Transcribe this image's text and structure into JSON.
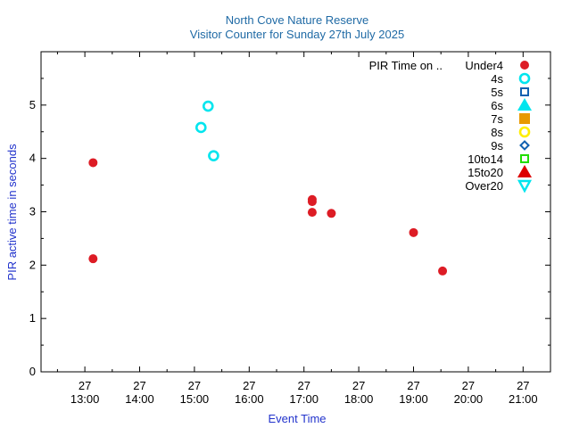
{
  "chart_data": {
    "type": "scatter",
    "title": "North Cove Nature Reserve",
    "subtitle": "Visitor Counter for Sunday 27th July 2025",
    "xlabel": "Event Time",
    "ylabel": "PIR active time in seconds",
    "x_unit": "hours",
    "xlim": [
      12.2,
      21.5
    ],
    "ylim": [
      0,
      6
    ],
    "x_ticks": [
      {
        "x": 13,
        "day": "27",
        "time": "13:00"
      },
      {
        "x": 14,
        "day": "27",
        "time": "14:00"
      },
      {
        "x": 15,
        "day": "27",
        "time": "15:00"
      },
      {
        "x": 16,
        "day": "27",
        "time": "16:00"
      },
      {
        "x": 17,
        "day": "27",
        "time": "17:00"
      },
      {
        "x": 18,
        "day": "27",
        "time": "18:00"
      },
      {
        "x": 19,
        "day": "27",
        "time": "19:00"
      },
      {
        "x": 20,
        "day": "27",
        "time": "20:00"
      },
      {
        "x": 21,
        "day": "27",
        "time": "21:00"
      }
    ],
    "y_ticks": [
      0,
      1,
      2,
      3,
      4,
      5
    ],
    "legend_title": "PIR Time on ..",
    "legend_position": "top-right",
    "series": [
      {
        "name": "Under4",
        "marker": "filled-circle",
        "color": "#dd1c25",
        "points": [
          [
            13.15,
            3.92
          ],
          [
            13.15,
            2.12
          ],
          [
            17.15,
            3.23
          ],
          [
            17.15,
            3.19
          ],
          [
            17.15,
            2.99
          ],
          [
            17.5,
            2.97
          ],
          [
            19.0,
            2.61
          ],
          [
            19.53,
            1.89
          ]
        ]
      },
      {
        "name": "4s",
        "marker": "open-circle",
        "color": "#00e5ee",
        "points": [
          [
            15.25,
            4.98
          ],
          [
            15.12,
            4.58
          ],
          [
            15.35,
            4.05
          ]
        ]
      },
      {
        "name": "5s",
        "marker": "open-square",
        "color": "#1060b0",
        "points": []
      },
      {
        "name": "6s",
        "marker": "filled-triangle",
        "color": "#00e5ee",
        "points": []
      },
      {
        "name": "7s",
        "marker": "filled-square",
        "color": "#e89a00",
        "points": []
      },
      {
        "name": "8s",
        "marker": "open-circle",
        "color": "#ffee00",
        "points": []
      },
      {
        "name": "9s",
        "marker": "open-diamond",
        "color": "#1060b0",
        "points": []
      },
      {
        "name": "10to14",
        "marker": "open-square",
        "color": "#22dd00",
        "points": []
      },
      {
        "name": "15to20",
        "marker": "filled-triangle",
        "color": "#dd0000",
        "points": []
      },
      {
        "name": "Over20",
        "marker": "open-triangle-down",
        "color": "#00e5ee",
        "points": []
      }
    ]
  }
}
